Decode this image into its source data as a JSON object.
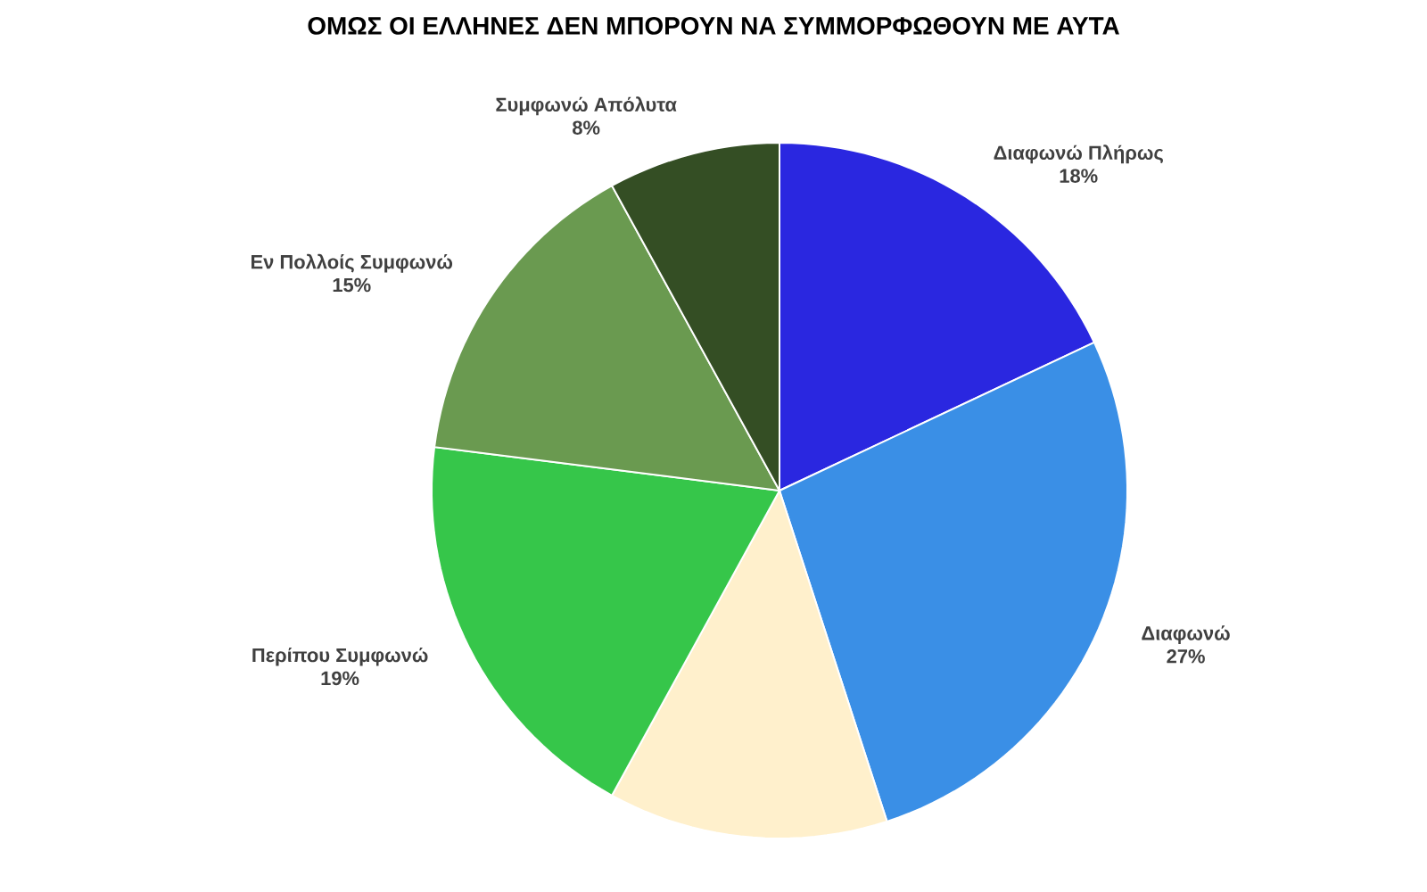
{
  "chart_data": {
    "type": "pie",
    "title": "ΟΜΩΣ ΟΙ ΕΛΛΗΝΕΣ ΔΕΝ ΜΠΟΡΟΥΝ ΝΑ ΣΥΜΜΟΡΦΩΘΟΥΝ ΜΕ ΑΥΤΑ",
    "categories": [
      "Διαφωνώ Πλήρως",
      "Διαφωνώ",
      null,
      "Περίπου Συμφωνώ",
      "Εν Πολλοίς Συμφωνώ",
      "Συμφωνώ Απόλυτα"
    ],
    "values": [
      18,
      27,
      13,
      19,
      15,
      8
    ],
    "value_labels": [
      "18%",
      "27%",
      null,
      "19%",
      "15%",
      "8%"
    ],
    "colors": [
      "#2a27e0",
      "#3a8fe6",
      "#fff0cc",
      "#36c64a",
      "#6a9a50",
      "#344e24"
    ]
  }
}
